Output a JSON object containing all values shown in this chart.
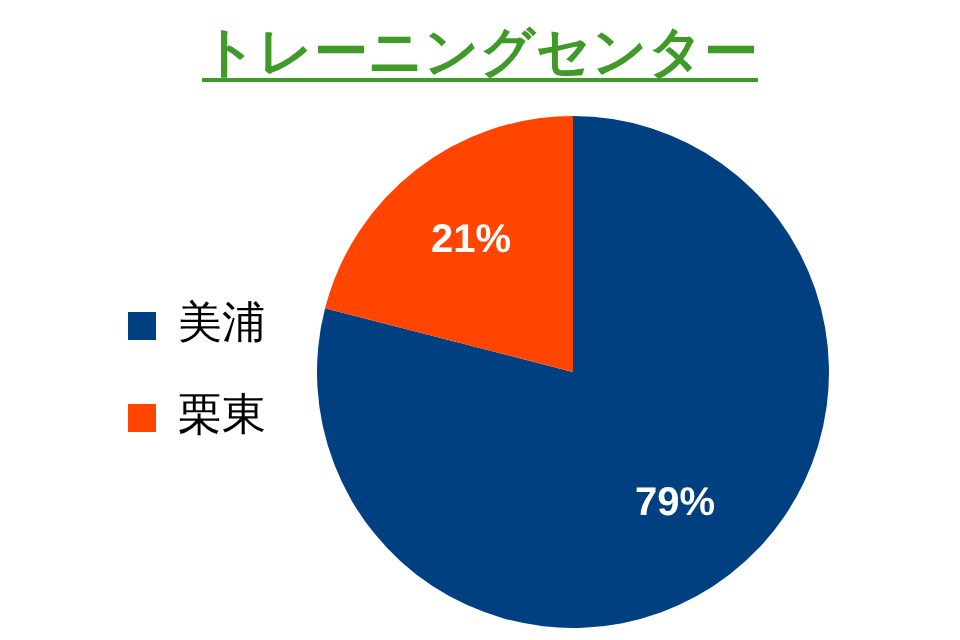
{
  "chart_data": {
    "type": "pie",
    "title": "トレーニングセンター",
    "categories": [
      "美浦",
      "栗東"
    ],
    "values": [
      79,
      21
    ],
    "colors": [
      "#004080",
      "#ff4500"
    ],
    "value_labels": [
      "79%",
      "21%"
    ],
    "legend": "left"
  }
}
